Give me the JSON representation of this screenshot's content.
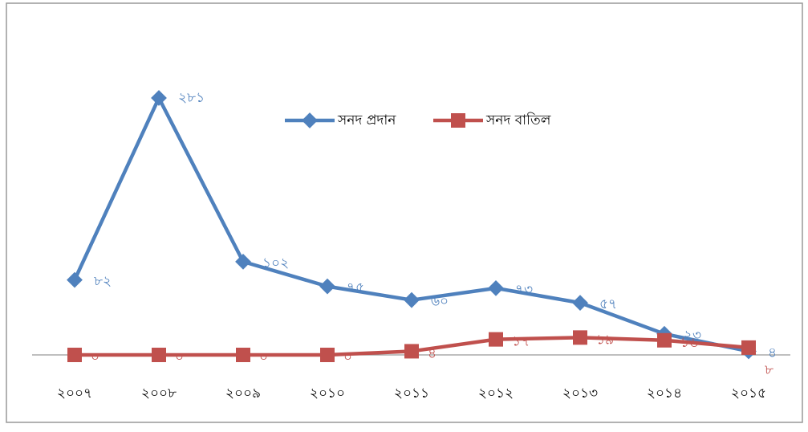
{
  "chart_data": {
    "type": "line",
    "categories": [
      "২০০৭",
      "২০০৮",
      "২০০৯",
      "২০১০",
      "২০১১",
      "২০১২",
      "২০১৩",
      "২০১৪",
      "২০১৫"
    ],
    "series": [
      {
        "name": "সনদ প্রদান",
        "color": "#4f81bd",
        "values": [
          82,
          281,
          102,
          75,
          60,
          73,
          57,
          23,
          4
        ],
        "value_labels": [
          "৮২",
          "২৮১",
          "১০২",
          "৭৫",
          "৬০",
          "৭৩",
          "৫৭",
          "২৩",
          "৪"
        ]
      },
      {
        "name": "সনদ বাতিল",
        "color": "#c0504d",
        "values": [
          0,
          0,
          0,
          0,
          4,
          17,
          19,
          16,
          8
        ],
        "value_labels": [
          "০",
          "০",
          "০",
          "০",
          "৪",
          "১৭",
          "১৯",
          "১৬",
          "৮"
        ]
      }
    ],
    "ylim": [
      0,
      300
    ],
    "legend": "top"
  }
}
